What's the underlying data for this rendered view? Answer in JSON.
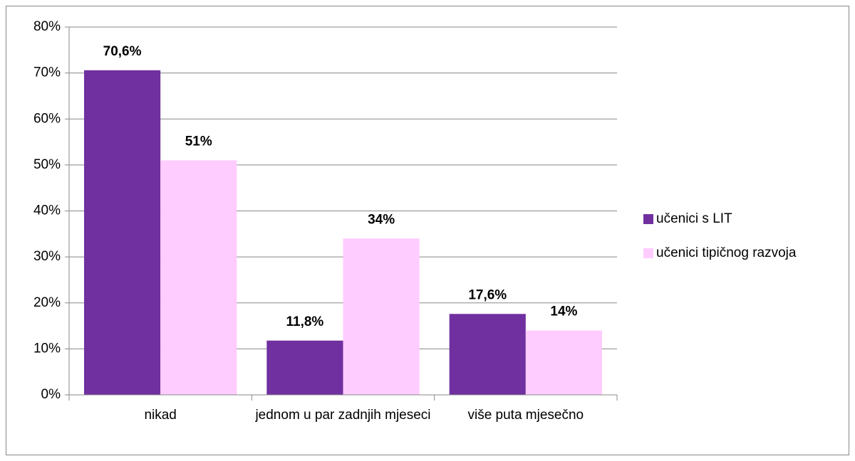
{
  "chart_data": {
    "type": "bar",
    "categories": [
      "nikad",
      "jednom u par zadnjih mjeseci",
      "više puta mjesečno"
    ],
    "series": [
      {
        "name": "učenici s LIT",
        "color": "#7030a0",
        "values": [
          70.6,
          11.8,
          17.6
        ],
        "value_labels": [
          "70,6%",
          "11,8%",
          "17,6%"
        ]
      },
      {
        "name": "učenici tipičnog razvoja",
        "color": "#ffccff",
        "values": [
          51,
          34,
          14
        ],
        "value_labels": [
          "51%",
          "34%",
          "14%"
        ]
      }
    ],
    "ylim": [
      0,
      80
    ],
    "yticks": [
      {
        "value": 0,
        "label": "0%"
      },
      {
        "value": 10,
        "label": "10%"
      },
      {
        "value": 20,
        "label": "20%"
      },
      {
        "value": 30,
        "label": "30%"
      },
      {
        "value": 40,
        "label": "40%"
      },
      {
        "value": 50,
        "label": "50%"
      },
      {
        "value": 60,
        "label": "60%"
      },
      {
        "value": 70,
        "label": "70%"
      },
      {
        "value": 80,
        "label": "80%"
      }
    ],
    "grid": true,
    "legend": "right"
  }
}
